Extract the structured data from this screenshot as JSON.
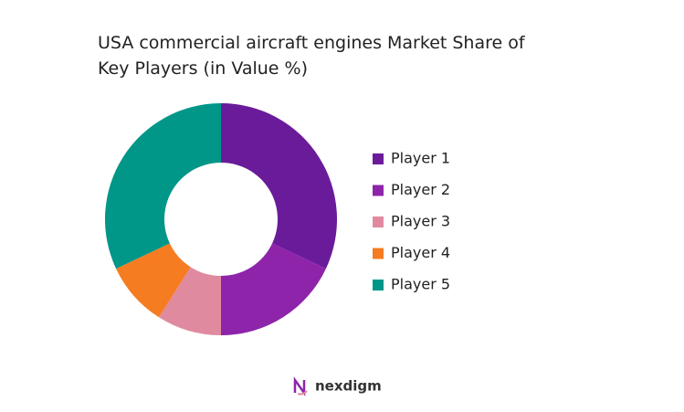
{
  "chart_data": {
    "type": "donut",
    "title": "USA commercial aircraft engines Market Share of Key Players (in Value %)",
    "categories": [
      "Player 1",
      "Player 2",
      "Player 3",
      "Player 4",
      "Player 5"
    ],
    "values": [
      32,
      18,
      9,
      9,
      32
    ],
    "colors": [
      "#6a1b9a",
      "#8e24aa",
      "#e08aa0",
      "#f57c20",
      "#009688"
    ],
    "legend": "right"
  },
  "footer": {
    "logo_text": "nexdigm"
  }
}
